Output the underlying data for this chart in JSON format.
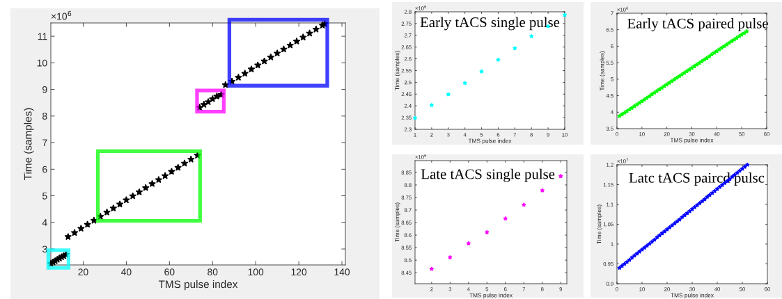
{
  "chart_data": [
    {
      "type": "scatter",
      "xlabel": "TMS pulse index",
      "ylabel": "Time (samples)",
      "marker": "star",
      "grid": false,
      "legend": false,
      "xlim": [
        5,
        141.6
      ],
      "xticks": [
        20,
        40,
        60,
        80,
        100,
        120,
        140
      ],
      "ylim": [
        2.4,
        11.5
      ],
      "yticks": [
        3,
        4,
        5,
        6,
        7,
        8,
        9,
        10,
        11
      ],
      "annotations": [
        "×10$^{6}$"
      ],
      "series": [
        {
          "color": "#000000",
          "x": [
            5,
            6,
            7,
            8,
            9,
            10,
            11,
            12
          ],
          "values": [
            2.45,
            2.5,
            2.55,
            2.6,
            2.65,
            2.7,
            2.74,
            2.79
          ]
        },
        {
          "color": "#000000",
          "x": [
            13,
            16,
            19,
            22,
            25
          ],
          "values": [
            3.46,
            3.61,
            3.77,
            3.92,
            4.07
          ]
        },
        {
          "color": "#000000",
          "x": [
            28,
            31,
            34,
            37,
            40,
            43,
            46,
            49,
            52,
            55,
            58,
            61,
            64,
            67,
            70,
            73
          ],
          "values": [
            4.22,
            4.38,
            4.53,
            4.68,
            4.84,
            4.99,
            5.14,
            5.3,
            5.45,
            5.6,
            5.75,
            5.91,
            6.06,
            6.22,
            6.37,
            6.52
          ]
        },
        {
          "color": "#000000",
          "x": [
            74,
            76,
            78,
            80,
            82,
            84
          ],
          "values": [
            8.32,
            8.43,
            8.53,
            8.64,
            8.74,
            8.8
          ]
        },
        {
          "color": "#000000",
          "x": [
            86
          ],
          "values": [
            9.17
          ]
        },
        {
          "color": "#000000",
          "x": [
            89,
            92,
            95,
            98,
            101,
            104,
            107,
            110,
            113,
            116,
            119,
            122,
            125,
            128,
            131,
            132
          ],
          "values": [
            9.3,
            9.45,
            9.6,
            9.76,
            9.91,
            10.06,
            10.21,
            10.36,
            10.51,
            10.66,
            10.81,
            10.96,
            11.11,
            11.26,
            11.41,
            11.46
          ]
        }
      ]
    },
    {
      "type": "scatter",
      "title": "Early tACS single pulse",
      "xlabel": "TMS pulse index",
      "ylabel": "Time (samples)",
      "marker": "star",
      "grid": false,
      "legend": false,
      "xlim": [
        1,
        10
      ],
      "xticks": [
        1,
        2,
        3,
        4,
        5,
        6,
        7,
        8,
        9,
        10
      ],
      "ylim": [
        2.3,
        2.8
      ],
      "yticks": [
        2.3,
        2.35,
        2.4,
        2.45,
        2.5,
        2.55,
        2.6,
        2.65,
        2.7,
        2.75,
        2.8
      ],
      "annotations": [
        "×10$^{6}$"
      ],
      "series": [
        {
          "color": "#00ffff",
          "x": [
            1,
            2,
            3,
            4,
            5,
            6,
            7,
            8,
            9,
            10
          ],
          "values": [
            2.348,
            2.403,
            2.449,
            2.497,
            2.546,
            2.596,
            2.645,
            2.696,
            2.738,
            2.787
          ]
        }
      ]
    },
    {
      "type": "scatter",
      "title": "Early tACS paired pulse",
      "xlabel": "TMS pulse index",
      "ylabel": "Time (samples)",
      "marker": "star",
      "grid": false,
      "legend": false,
      "xlim": [
        0,
        60
      ],
      "xticks": [
        0,
        10,
        20,
        30,
        40,
        50,
        60
      ],
      "ylim": [
        3.5,
        7
      ],
      "yticks": [
        3.5,
        4,
        4.5,
        5,
        5.5,
        6,
        6.5,
        7
      ],
      "annotations": [
        "×10$^{6}$"
      ],
      "series": [
        {
          "color": "#00ff00",
          "x": [
            1,
            2,
            3,
            4,
            5,
            6,
            7,
            8,
            9,
            10,
            11,
            12,
            13,
            14,
            15,
            16,
            17,
            18,
            19,
            20,
            21,
            22,
            23,
            24,
            25,
            26,
            27,
            28,
            29,
            30,
            31,
            32,
            33,
            34,
            35,
            36,
            37,
            38,
            39,
            40,
            41,
            42,
            43,
            44,
            45,
            46,
            47,
            48,
            49,
            50,
            51,
            52
          ],
          "values": [
            3.88,
            3.93,
            3.98,
            4.03,
            4.08,
            4.13,
            4.18,
            4.23,
            4.28,
            4.33,
            4.38,
            4.43,
            4.48,
            4.54,
            4.59,
            4.64,
            4.69,
            4.74,
            4.79,
            4.84,
            4.89,
            4.94,
            4.99,
            5.04,
            5.09,
            5.14,
            5.19,
            5.24,
            5.29,
            5.34,
            5.39,
            5.44,
            5.49,
            5.54,
            5.59,
            5.64,
            5.69,
            5.75,
            5.8,
            5.85,
            5.9,
            5.95,
            6.0,
            6.05,
            6.1,
            6.15,
            6.2,
            6.25,
            6.3,
            6.35,
            6.4,
            6.45
          ]
        }
      ]
    },
    {
      "type": "scatter",
      "title": "Late tACS single pulse",
      "xlabel": "TMS pulse index",
      "ylabel": "Time (samples)",
      "marker": "star",
      "grid": false,
      "legend": false,
      "xlim": [
        1.1,
        9.33
      ],
      "xticks": [
        2,
        3,
        4,
        5,
        6,
        7,
        8,
        9
      ],
      "ylim": [
        8.406,
        8.897
      ],
      "yticks": [
        8.45,
        8.5,
        8.55,
        8.6,
        8.65,
        8.7,
        8.75,
        8.8,
        8.85
      ],
      "annotations": [
        "×10$^{6}$"
      ],
      "series": [
        {
          "color": "#ff00ff",
          "x": [
            2,
            3,
            4,
            5,
            6,
            7,
            8,
            9
          ],
          "values": [
            8.465,
            8.511,
            8.567,
            8.611,
            8.666,
            8.721,
            8.778,
            8.835
          ]
        }
      ]
    },
    {
      "type": "scatter",
      "title": "Latc tACS paircd pulsc",
      "xlabel": "TMS pulse index",
      "ylabel": "Time (samples)",
      "marker": "star",
      "grid": false,
      "legend": false,
      "xlim": [
        0,
        60
      ],
      "xticks": [
        0,
        10,
        20,
        30,
        40,
        50,
        60
      ],
      "ylim": [
        0.9,
        1.2
      ],
      "yticks": [
        0.9,
        0.95,
        1,
        1.05,
        1.1,
        1.15,
        1.2
      ],
      "annotations": [
        "×10$^{7}$"
      ],
      "series": [
        {
          "color": "#0000ff",
          "x": [
            1,
            2,
            3,
            4,
            5,
            6,
            7,
            8,
            9,
            10,
            11,
            12,
            13,
            14,
            15,
            16,
            17,
            18,
            19,
            20,
            21,
            22,
            23,
            24,
            25,
            26,
            27,
            28,
            29,
            30,
            31,
            32,
            33,
            34,
            35,
            36,
            37,
            38,
            39,
            40,
            41,
            42,
            43,
            44,
            45,
            46,
            47,
            48,
            49,
            50,
            51,
            52
          ],
          "values": [
            0.94,
            0.945,
            0.95,
            0.955,
            0.96,
            0.966,
            0.971,
            0.976,
            0.981,
            0.986,
            0.991,
            0.996,
            1.001,
            1.006,
            1.011,
            1.017,
            1.022,
            1.027,
            1.032,
            1.037,
            1.042,
            1.047,
            1.052,
            1.057,
            1.062,
            1.068,
            1.073,
            1.078,
            1.083,
            1.088,
            1.093,
            1.098,
            1.103,
            1.108,
            1.113,
            1.119,
            1.124,
            1.129,
            1.134,
            1.139,
            1.144,
            1.149,
            1.154,
            1.159,
            1.164,
            1.17,
            1.175,
            1.18,
            1.185,
            1.19,
            1.195,
            1.2
          ]
        }
      ]
    }
  ]
}
